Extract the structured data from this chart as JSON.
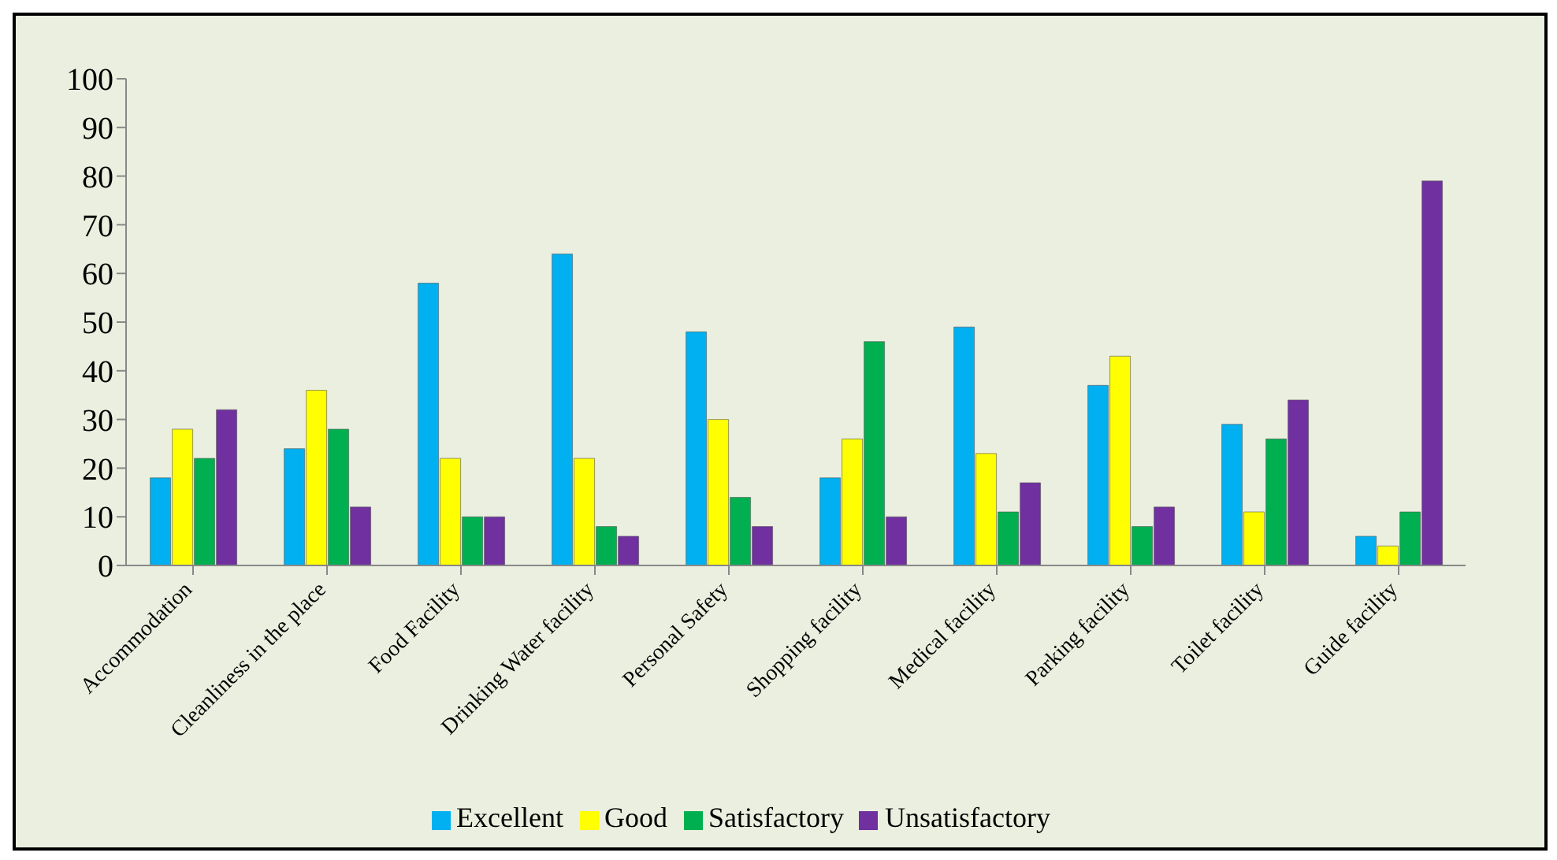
{
  "chart_data": {
    "type": "bar",
    "categories": [
      "Accommodation",
      "Cleanliness in the place",
      "Food Facility",
      "Drinking Water facility",
      "Personal Safety",
      "Shopping facility",
      "Medical facility",
      "Parking facility",
      "Toilet facility",
      "Guide facility"
    ],
    "series": [
      {
        "name": "Excellent",
        "color": "#00b0f0",
        "values": [
          18,
          24,
          58,
          64,
          48,
          18,
          49,
          37,
          29,
          6
        ]
      },
      {
        "name": "Good",
        "color": "#ffff00",
        "values": [
          28,
          36,
          22,
          22,
          30,
          26,
          23,
          43,
          11,
          4
        ]
      },
      {
        "name": "Satisfactory",
        "color": "#00b050",
        "values": [
          22,
          28,
          10,
          8,
          14,
          46,
          11,
          8,
          26,
          11
        ]
      },
      {
        "name": "Unsatisfactory",
        "color": "#7030a0",
        "values": [
          32,
          12,
          10,
          6,
          8,
          10,
          17,
          12,
          34,
          79
        ]
      }
    ],
    "ylim": [
      0,
      100
    ],
    "yticks": [
      0,
      10,
      20,
      30,
      40,
      50,
      60,
      70,
      80,
      90,
      100
    ],
    "grid": false,
    "legend": "bottom"
  }
}
